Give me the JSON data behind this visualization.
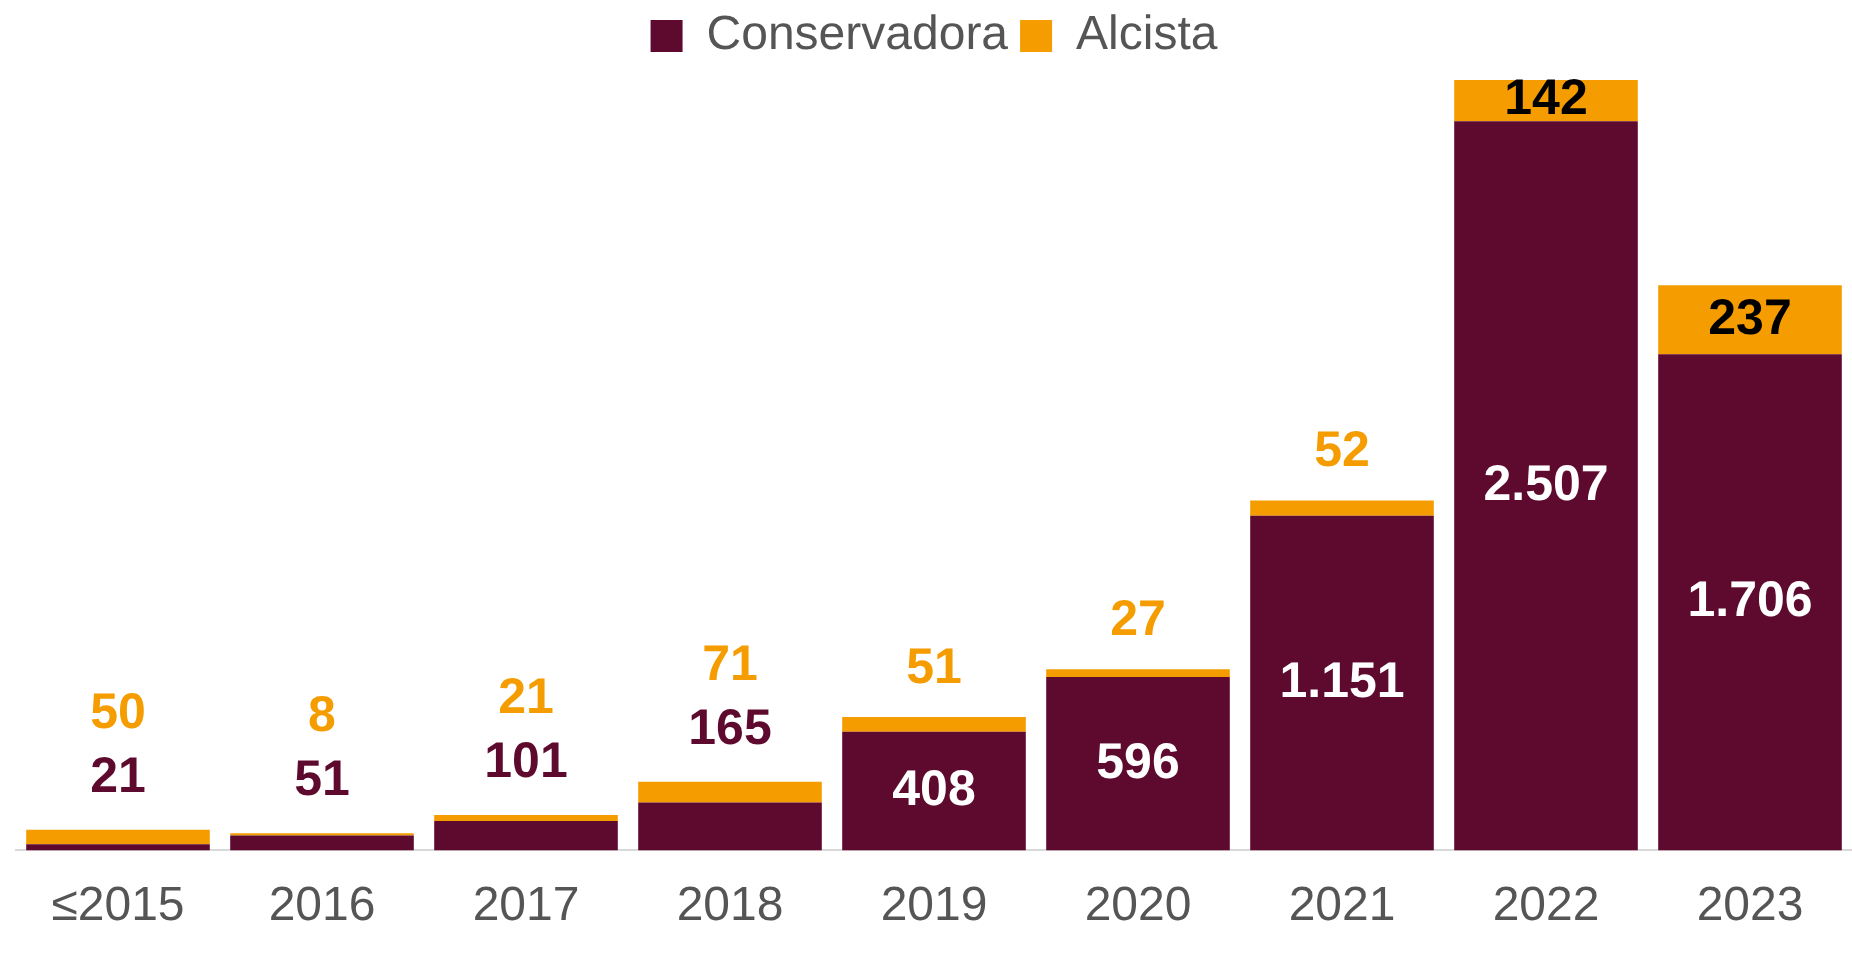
{
  "chart_data": {
    "type": "bar",
    "stacked": true,
    "categories": [
      "≤2015",
      "2016",
      "2017",
      "2018",
      "2019",
      "2020",
      "2021",
      "2022",
      "2023"
    ],
    "series": [
      {
        "name": "Conservadora",
        "color": "#5e0a2f",
        "values": [
          21,
          51,
          101,
          165,
          408,
          596,
          1151,
          2507,
          1706
        ],
        "value_labels": [
          "21",
          "51",
          "101",
          "165",
          "408",
          "596",
          "1.151",
          "2.507",
          "1.706"
        ]
      },
      {
        "name": "Alcista",
        "color": "#f59c00",
        "values": [
          50,
          8,
          21,
          71,
          51,
          27,
          52,
          142,
          237
        ],
        "value_labels": [
          "50",
          "8",
          "21",
          "71",
          "51",
          "27",
          "52",
          "142",
          "237"
        ]
      }
    ],
    "legend": "top",
    "grid": false,
    "tick_labels": "x"
  }
}
